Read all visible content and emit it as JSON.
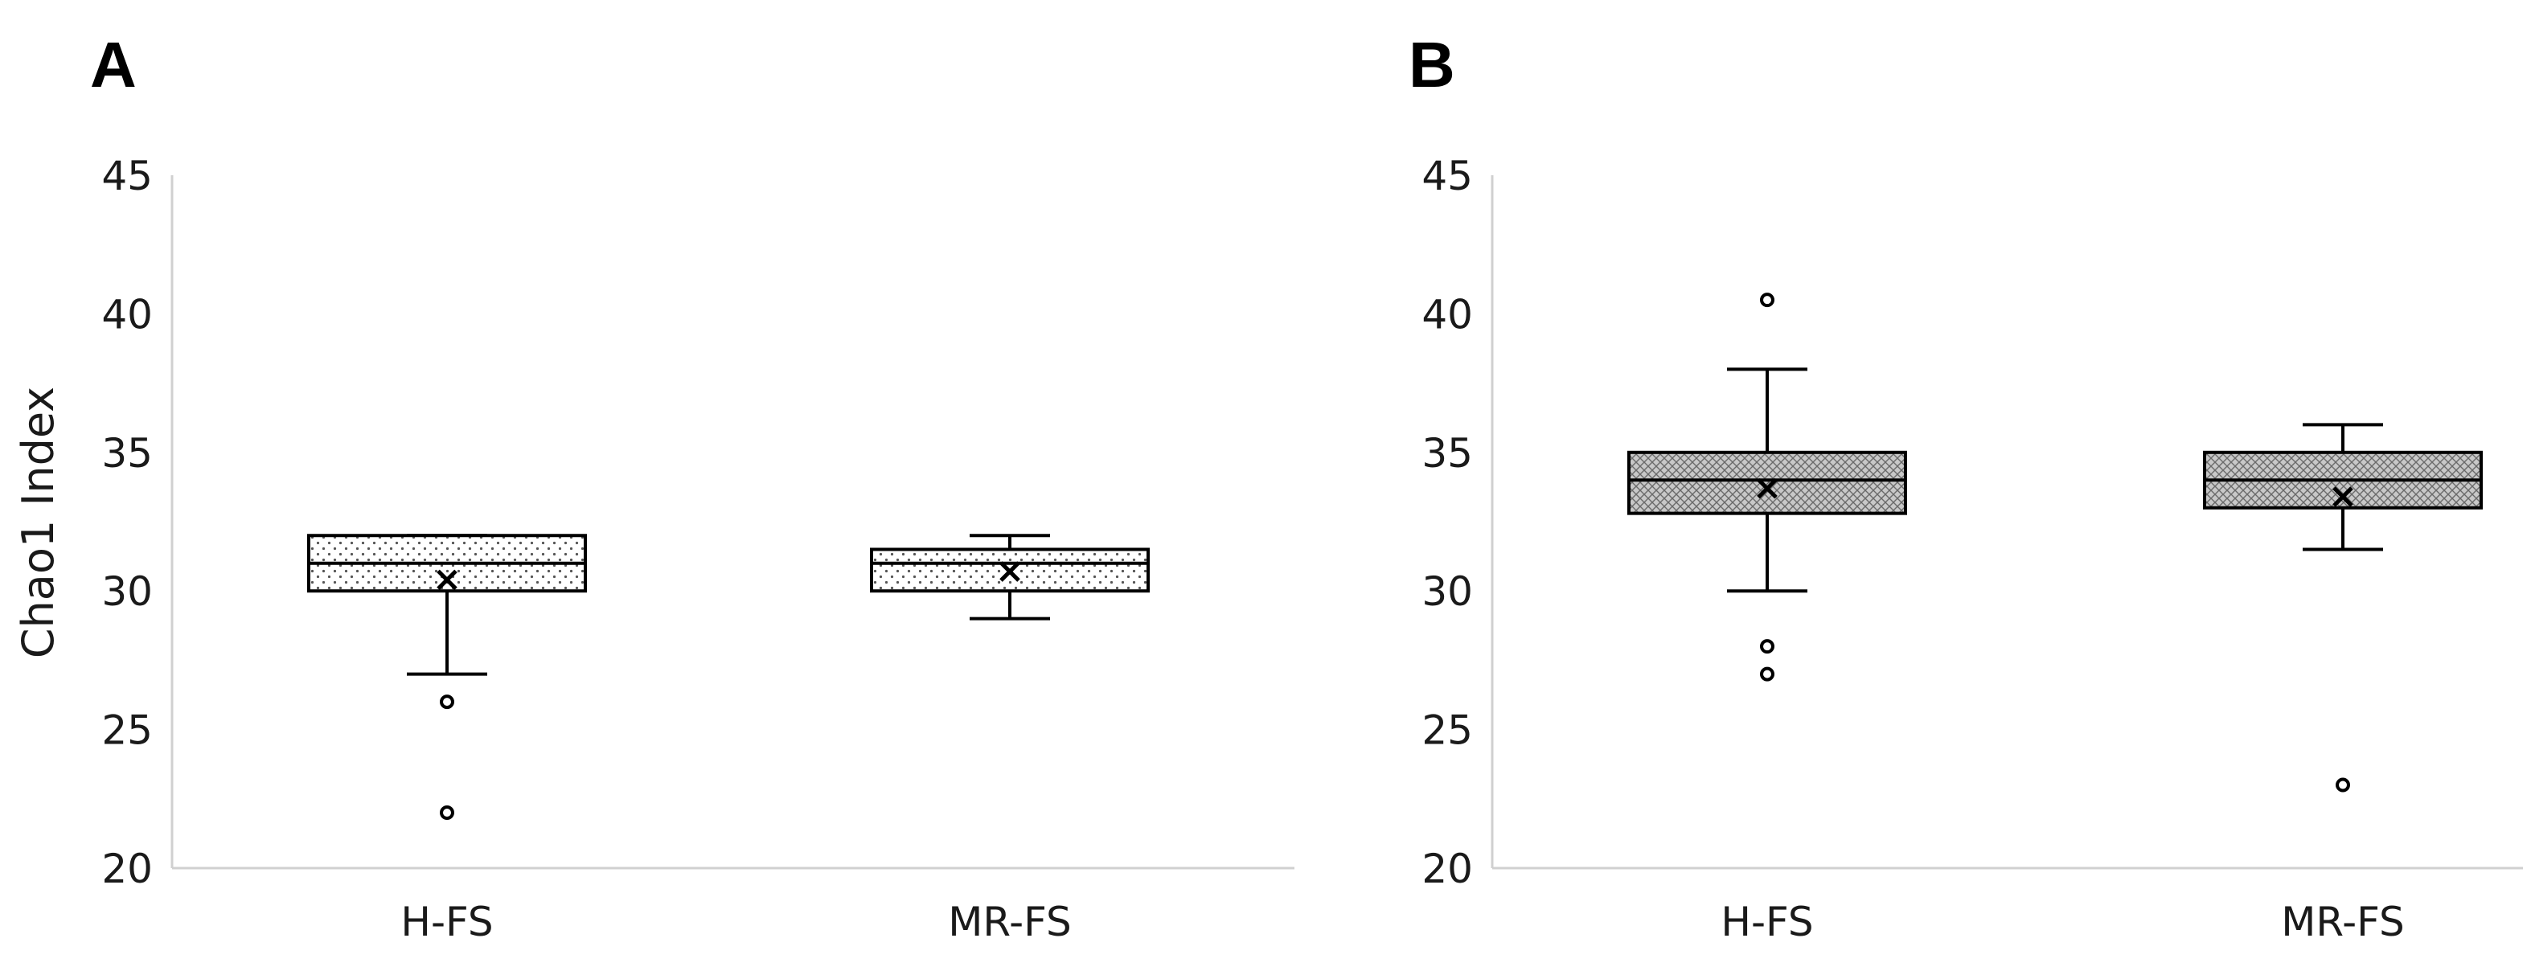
{
  "chart_data": [
    {
      "panel": "A",
      "type": "box",
      "ylabel": "Chao1 Index",
      "ylim": [
        20,
        45
      ],
      "yticks": [
        20,
        25,
        30,
        35,
        40,
        45
      ],
      "categories": [
        "H-FS",
        "MR-FS"
      ],
      "fill_pattern": "dots",
      "fill_color": "#ffffff",
      "boxes": [
        {
          "category": "H-FS",
          "whisker_low": 27,
          "q1": 30,
          "median": 31,
          "q3": 32,
          "whisker_high": 32,
          "mean": 30.4,
          "outliers": [
            26,
            22
          ]
        },
        {
          "category": "MR-FS",
          "whisker_low": 29,
          "q1": 30,
          "median": 31,
          "q3": 31.5,
          "whisker_high": 32,
          "mean": 30.7,
          "outliers": []
        }
      ]
    },
    {
      "panel": "B",
      "type": "box",
      "ylabel": "",
      "ylim": [
        20,
        45
      ],
      "yticks": [
        20,
        25,
        30,
        35,
        40,
        45
      ],
      "categories": [
        "H-FS",
        "MR-FS"
      ],
      "fill_pattern": "crosshatch",
      "fill_color": "#c8c8c8",
      "boxes": [
        {
          "category": "H-FS",
          "whisker_low": 30,
          "q1": 32.8,
          "median": 34,
          "q3": 35,
          "whisker_high": 38,
          "mean": 33.7,
          "outliers": [
            40.5,
            28,
            27
          ]
        },
        {
          "category": "MR-FS",
          "whisker_low": 31.5,
          "q1": 33,
          "median": 34,
          "q3": 35,
          "whisker_high": 36,
          "mean": 33.4,
          "outliers": [
            23
          ]
        }
      ]
    }
  ]
}
